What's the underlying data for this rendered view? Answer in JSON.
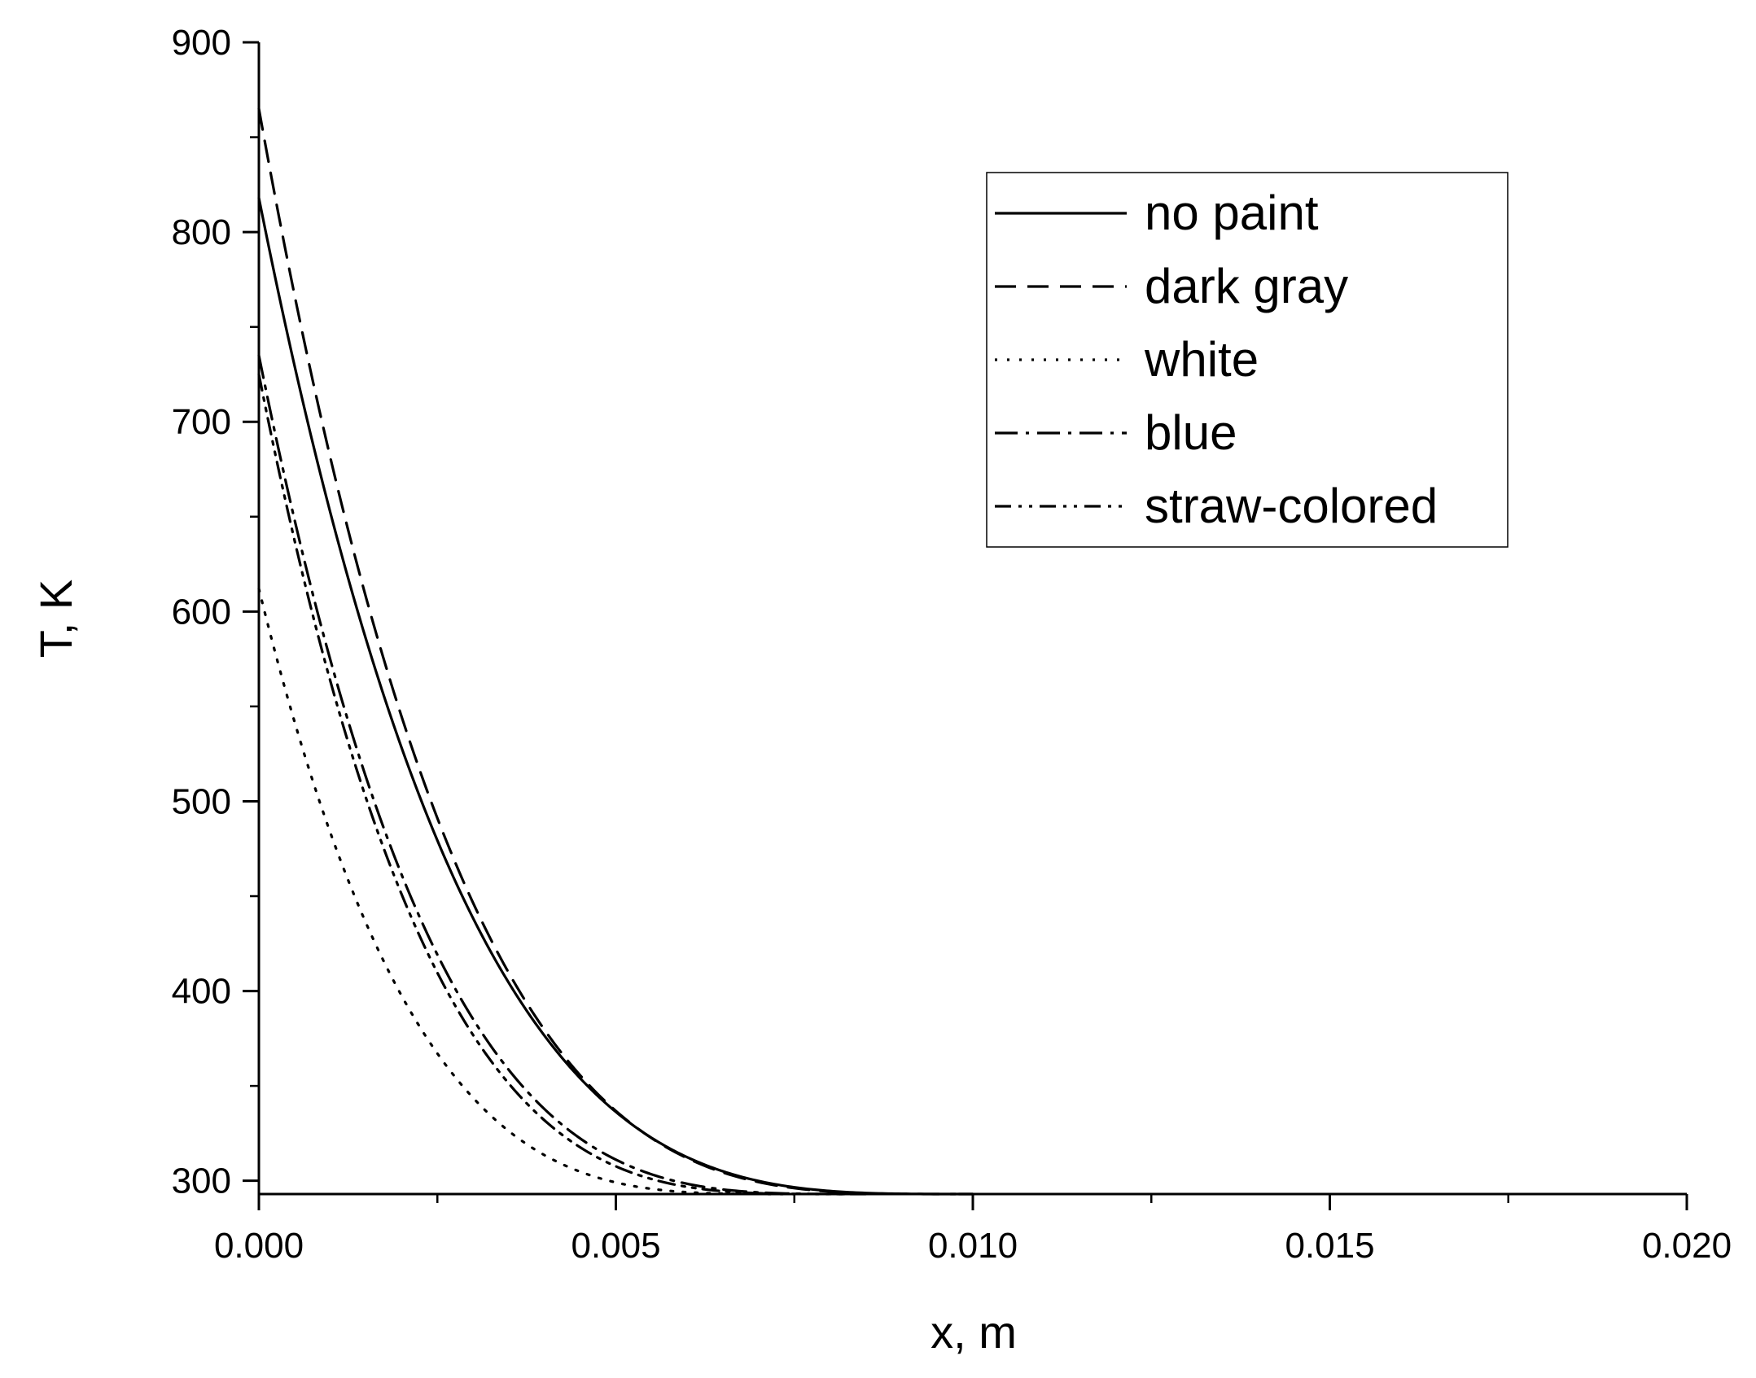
{
  "chart_data": {
    "type": "line",
    "xlabel": "x, m",
    "ylabel": "T, K",
    "xlim": [
      0,
      0.02
    ],
    "ylim": [
      293,
      900
    ],
    "xticks": [
      "0.000",
      "0.005",
      "0.010",
      "0.015",
      "0.020"
    ],
    "xtick_values": [
      0,
      0.005,
      0.01,
      0.015,
      0.02
    ],
    "yticks": [
      "300",
      "400",
      "500",
      "600",
      "700",
      "800",
      "900"
    ],
    "ytick_values": [
      300,
      400,
      500,
      600,
      700,
      800,
      900
    ],
    "grid": false,
    "legend_position": "top-right",
    "ambient_temperature": 293,
    "series": [
      {
        "name": "no paint",
        "dash": "solid",
        "T0": 818,
        "x_end": 0.01,
        "values_x": [
          0,
          0.001,
          0.002,
          0.003,
          0.004,
          0.005,
          0.006,
          0.007,
          0.008,
          0.009,
          0.01
        ],
        "values_y": [
          818,
          665,
          542,
          445,
          376,
          333,
          309,
          298,
          295,
          293.5,
          293
        ]
      },
      {
        "name": "dark gray",
        "dash": "dashed",
        "T0": 865,
        "x_end": 0.0098,
        "values_x": [
          0,
          0.001,
          0.002,
          0.003,
          0.004,
          0.005,
          0.006,
          0.007,
          0.008,
          0.009,
          0.0098
        ],
        "values_y": [
          865,
          700,
          566,
          460,
          385,
          338,
          311,
          299,
          295,
          293.5,
          293
        ]
      },
      {
        "name": "white",
        "dash": "dotted",
        "T0": 612,
        "x_end": 0.0075,
        "values_x": [
          0,
          0.001,
          0.002,
          0.003,
          0.004,
          0.005,
          0.006,
          0.007,
          0.0075
        ],
        "values_y": [
          612,
          510,
          430,
          372,
          334,
          312,
          300,
          295,
          293
        ]
      },
      {
        "name": "blue",
        "dash": "dashdot",
        "T0": 735,
        "x_end": 0.0085,
        "values_x": [
          0,
          0.001,
          0.002,
          0.003,
          0.004,
          0.005,
          0.006,
          0.007,
          0.008,
          0.0085
        ],
        "values_y": [
          735,
          600,
          495,
          415,
          360,
          326,
          306,
          297,
          294,
          293
        ]
      },
      {
        "name": "straw-colored",
        "dash": "dashdotdot",
        "T0": 725,
        "x_end": 0.0082,
        "values_x": [
          0,
          0.001,
          0.002,
          0.003,
          0.004,
          0.005,
          0.006,
          0.007,
          0.008,
          0.0082
        ],
        "values_y": [
          725,
          592,
          489,
          411,
          357,
          324,
          305,
          296,
          293.5,
          293
        ]
      }
    ]
  }
}
